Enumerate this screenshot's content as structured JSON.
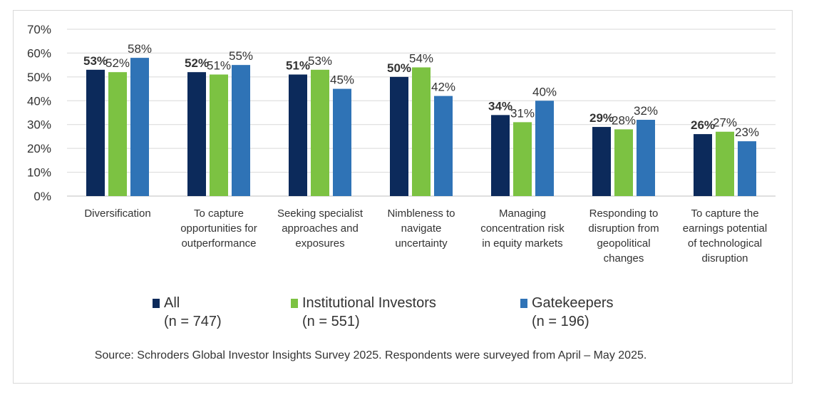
{
  "chart_data": {
    "type": "bar",
    "categories": [
      [
        "Diversification"
      ],
      [
        "To capture",
        "opportunities for",
        "outperformance"
      ],
      [
        "Seeking specialist",
        "approaches and",
        "exposures"
      ],
      [
        "Nimbleness to",
        "navigate",
        "uncertainty"
      ],
      [
        "Managing",
        "concentration risk",
        "in equity markets"
      ],
      [
        "Responding to",
        "disruption from",
        "geopolitical",
        "changes"
      ],
      [
        "To capture the",
        "earnings potential",
        "of technological",
        "disruption"
      ]
    ],
    "series": [
      {
        "name": "All",
        "n": "(n = 747)",
        "color": "#0c2a5b",
        "values": [
          53,
          52,
          51,
          50,
          34,
          29,
          26
        ],
        "labels": [
          "53%",
          "52%",
          "51%",
          "50%",
          "34%",
          "29%",
          "26%"
        ],
        "bold": true
      },
      {
        "name": "Institutional Investors",
        "n": "(n = 551)",
        "color": "#7cc242",
        "values": [
          52,
          51,
          53,
          54,
          31,
          28,
          27
        ],
        "labels": [
          "52%",
          "51%",
          "53%",
          "54%",
          "31%",
          "28%",
          "27%"
        ],
        "bold": false
      },
      {
        "name": "Gatekeepers",
        "n": "(n = 196)",
        "color": "#2f73b6",
        "values": [
          58,
          55,
          45,
          42,
          40,
          32,
          23
        ],
        "labels": [
          "58%",
          "55%",
          "45%",
          "42%",
          "40%",
          "32%",
          "23%"
        ],
        "bold": false
      }
    ],
    "yticks": [
      "0%",
      "10%",
      "20%",
      "30%",
      "40%",
      "50%",
      "60%",
      "70%"
    ],
    "ylim": [
      0,
      70
    ],
    "grid": true,
    "legend_position": "bottom",
    "source": "Source: Schroders Global Investor Insights Survey 2025. Respondents were surveyed from April – May 2025."
  }
}
